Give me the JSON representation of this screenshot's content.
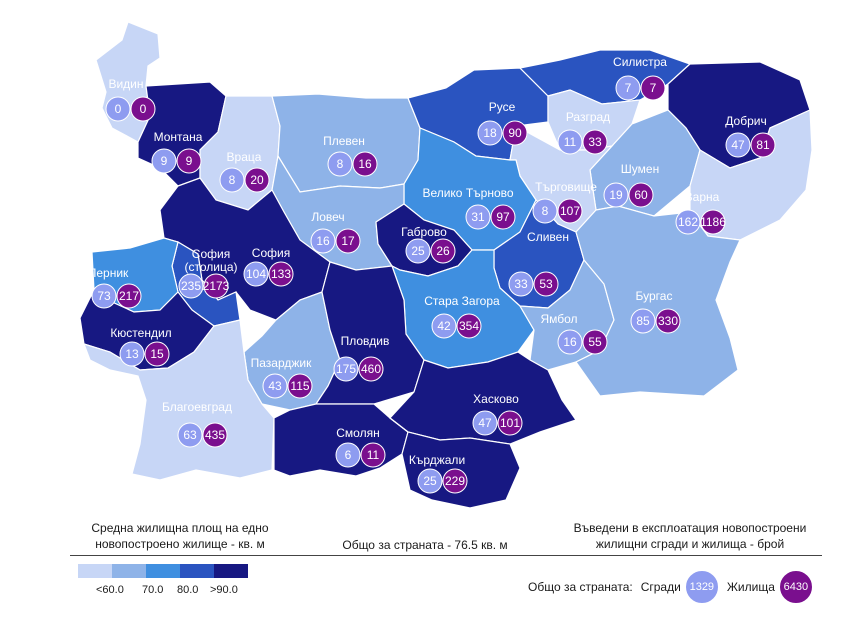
{
  "colors": {
    "lt60": "#c7d6f6",
    "c60_70": "#8eb3e8",
    "c70_80": "#3f8fe0",
    "c80_90": "#2a54c0",
    "gt90": "#171882",
    "buildings": "#8e9cf0",
    "dwellings": "#7a0f8e"
  },
  "regions": [
    {
      "name": "Видин",
      "buildings": "0",
      "dwellings": "0",
      "class": "lt60"
    },
    {
      "name": "Монтана",
      "buildings": "9",
      "dwellings": "9",
      "class": "gt90"
    },
    {
      "name": "Враца",
      "buildings": "8",
      "dwellings": "20",
      "class": "lt60"
    },
    {
      "name": "Плевен",
      "buildings": "8",
      "dwellings": "16",
      "class": "c60_70"
    },
    {
      "name": "Русе",
      "buildings": "18",
      "dwellings": "90",
      "class": "c80_90"
    },
    {
      "name": "Силистра",
      "buildings": "7",
      "dwellings": "7",
      "class": "c80_90"
    },
    {
      "name": "Разград",
      "buildings": "11",
      "dwellings": "33",
      "class": "lt60"
    },
    {
      "name": "Добрич",
      "buildings": "47",
      "dwellings": "81",
      "class": "gt90"
    },
    {
      "name": "Шумен",
      "buildings": "19",
      "dwellings": "60",
      "class": "c60_70"
    },
    {
      "name": "Търговище",
      "buildings": "8",
      "dwellings": "107",
      "class": "lt60"
    },
    {
      "name": "Варна",
      "buildings": "162",
      "dwellings": "1186",
      "class": "lt60"
    },
    {
      "name": "Велико Търново",
      "buildings": "31",
      "dwellings": "97",
      "class": "c70_80"
    },
    {
      "name": "Ловеч",
      "buildings": "16",
      "dwellings": "17",
      "class": "c60_70"
    },
    {
      "name": "Габрово",
      "buildings": "25",
      "dwellings": "26",
      "class": "gt90"
    },
    {
      "name": "София",
      "buildings": "104",
      "dwellings": "133",
      "class": "gt90"
    },
    {
      "name": "София (столица)",
      "buildings": "235",
      "dwellings": "2173",
      "class": "c80_90"
    },
    {
      "name": "Перник",
      "buildings": "73",
      "dwellings": "217",
      "class": "c70_80"
    },
    {
      "name": "Кюстендил",
      "buildings": "13",
      "dwellings": "15",
      "class": "gt90"
    },
    {
      "name": "Сливен",
      "buildings": "33",
      "dwellings": "53",
      "class": "c80_90"
    },
    {
      "name": "Стара Загора",
      "buildings": "42",
      "dwellings": "354",
      "class": "c70_80"
    },
    {
      "name": "Ямбол",
      "buildings": "16",
      "dwellings": "55",
      "class": "c60_70"
    },
    {
      "name": "Бургас",
      "buildings": "85",
      "dwellings": "330",
      "class": "c60_70"
    },
    {
      "name": "Пазарджик",
      "buildings": "43",
      "dwellings": "115",
      "class": "c60_70"
    },
    {
      "name": "Пловдив",
      "buildings": "175",
      "dwellings": "460",
      "class": "gt90"
    },
    {
      "name": "Благоевград",
      "buildings": "63",
      "dwellings": "435",
      "class": "lt60"
    },
    {
      "name": "Смолян",
      "buildings": "6",
      "dwellings": "11",
      "class": "gt90"
    },
    {
      "name": "Хасково",
      "buildings": "47",
      "dwellings": "101",
      "class": "gt90"
    },
    {
      "name": "Кърджали",
      "buildings": "25",
      "dwellings": "229",
      "class": "gt90"
    }
  ],
  "legend": {
    "left_title_line1": "Средна жилищна площ на едно",
    "left_title_line2": "новопостроено жилище - кв. м",
    "middle": "Общо за страната - 76.5 кв. м",
    "right_line1": "Въведени в експлоатация новопостроени",
    "right_line2": "жилищни сгради и жилища - брой",
    "ticks": [
      "<60.0",
      "70.0",
      "80.0",
      ">90.0"
    ],
    "total_label": "Общо за страната:",
    "buildings_label": "Сгради",
    "buildings_total": "1329",
    "dwellings_label": "Жилища",
    "dwellings_total": "6430"
  }
}
